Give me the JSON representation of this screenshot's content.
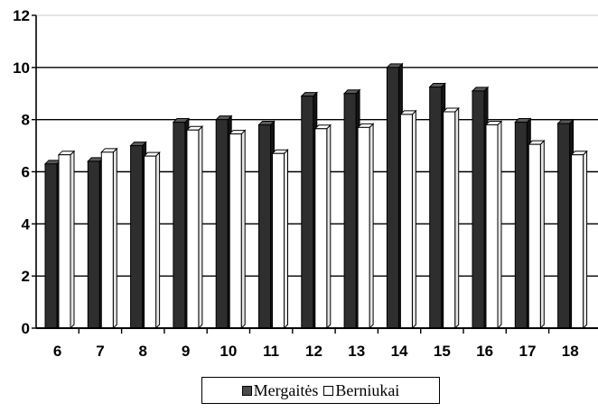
{
  "chart_data": {
    "type": "bar",
    "categories": [
      "6",
      "7",
      "8",
      "9",
      "10",
      "11",
      "12",
      "13",
      "14",
      "15",
      "16",
      "17",
      "18"
    ],
    "series": [
      {
        "name": "Mergaitės",
        "values": [
          6.3,
          6.4,
          7.0,
          7.9,
          8.0,
          7.8,
          8.9,
          9.0,
          10.0,
          9.25,
          9.1,
          7.9,
          7.85
        ],
        "color": "#2e2e2e"
      },
      {
        "name": "Berniukai",
        "values": [
          6.65,
          6.75,
          6.6,
          7.6,
          7.45,
          6.7,
          7.65,
          7.7,
          8.2,
          8.3,
          7.8,
          7.05,
          6.65
        ],
        "color": "#ffffff"
      }
    ],
    "yticks": [
      "0",
      "2",
      "4",
      "6",
      "8",
      "10",
      "12"
    ],
    "ylim": [
      0,
      12
    ],
    "gridlines": [
      10,
      8,
      6,
      4,
      2
    ],
    "legend_position": "bottom-center",
    "title": "",
    "xlabel": "",
    "ylabel": ""
  }
}
